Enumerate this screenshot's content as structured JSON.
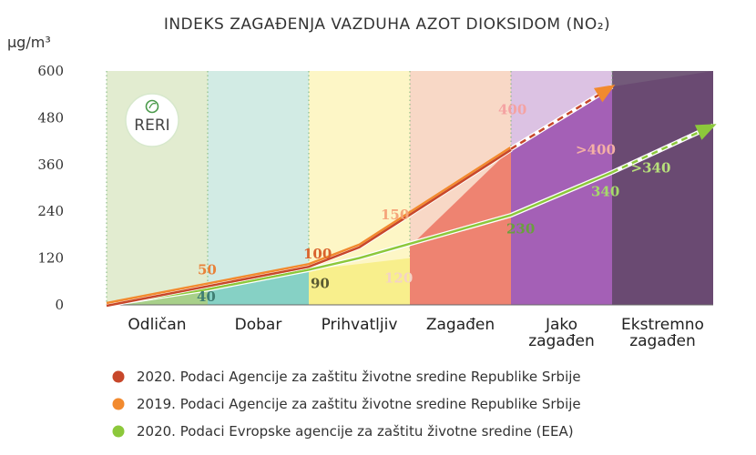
{
  "chart_data": {
    "type": "line",
    "title": "INDEKS ZAGAĐENJA VAZDUHA AZOT DIOKSIDOM (NO₂)",
    "ylabel": "µg/m³",
    "ylim": [
      0,
      600
    ],
    "yticks": [
      "0",
      "120",
      "240",
      "360",
      "480",
      "600"
    ],
    "categories": [
      "Odličan",
      "Dobar",
      "Prihvatljiv",
      "Zagađen",
      "Jako zagađen",
      "Ekstremno zagađen"
    ],
    "category_colors": [
      "#e2ecd0",
      "#d2ebe4",
      "#fdf6c6",
      "#f8d8c6",
      "#dcc2e3",
      "#735a7a"
    ],
    "category_fill_colors": [
      "#a8d08a",
      "#86d1c5",
      "#f8ef8c",
      "#ee8371",
      "#a460b6",
      "#5a3d62"
    ],
    "band_top_values": [
      40,
      90,
      120,
      230,
      340
    ],
    "upper_top_values": [
      50,
      100,
      150,
      400,
      560
    ],
    "series": [
      {
        "points": [
          [
            0,
            0
          ],
          [
            1,
            50
          ],
          [
            2,
            100
          ],
          [
            2.5,
            150
          ],
          [
            4,
            400
          ],
          [
            5,
            560
          ]
        ],
        "color": "#c7472a",
        "dashed_from_index": 4
      },
      {
        "points": [
          [
            0,
            0
          ],
          [
            1,
            50
          ],
          [
            2,
            100
          ],
          [
            2.5,
            150
          ],
          [
            4,
            400
          ],
          [
            5,
            560
          ]
        ],
        "color": "#f28a2e"
      },
      {
        "points": [
          [
            0,
            0
          ],
          [
            1,
            40
          ],
          [
            2,
            90
          ],
          [
            2.5,
            120
          ],
          [
            4,
            230
          ],
          [
            5,
            340
          ],
          [
            6,
            460
          ]
        ],
        "color": "#8cc83b",
        "dashed_from_index": 5
      }
    ],
    "data_labels": [
      {
        "x": 1,
        "y": 50,
        "text": "50",
        "color": "#e8823a"
      },
      {
        "x": 2,
        "y": 100,
        "text": "100",
        "color": "#d9622c"
      },
      {
        "x": 3,
        "y": 150,
        "text": "150",
        "color": "#f5a57a"
      },
      {
        "x": 4,
        "y": 400,
        "text": "400",
        "color": "#f4a2a2"
      },
      {
        "x": 5,
        "y": 400,
        "text": ">400",
        "color": "#f4b0a5"
      },
      {
        "x": 1,
        "y": 40,
        "text": "40",
        "color": "#3f7e73"
      },
      {
        "x": 2,
        "y": 90,
        "text": "90",
        "color": "#5a5a32"
      },
      {
        "x": 3,
        "y": 120,
        "text": "120",
        "color": "#f4d3c6"
      },
      {
        "x": 4,
        "y": 230,
        "text": "230",
        "color": "#6a9f3e"
      },
      {
        "x": 5,
        "y": 340,
        "text": "340",
        "color": "#a6d96a"
      },
      {
        "x": 5.5,
        "y": 340,
        "text": ">340",
        "color": "#b8e07b"
      }
    ],
    "legend": [
      {
        "label": "2020. Podaci Agencije za zaštitu životne sredine Republike Srbije",
        "color": "#c7472a"
      },
      {
        "label": "2019. Podaci Agencije za zaštitu životne sredine Republike Srbije",
        "color": "#f28a2e"
      },
      {
        "label": "2020. Podaci Evropske agencije za zaštitu životne sredine (EEA)",
        "color": "#8cc83b"
      }
    ],
    "legend_position": "bottom",
    "grid": false
  },
  "logo": {
    "text": "RERI"
  }
}
